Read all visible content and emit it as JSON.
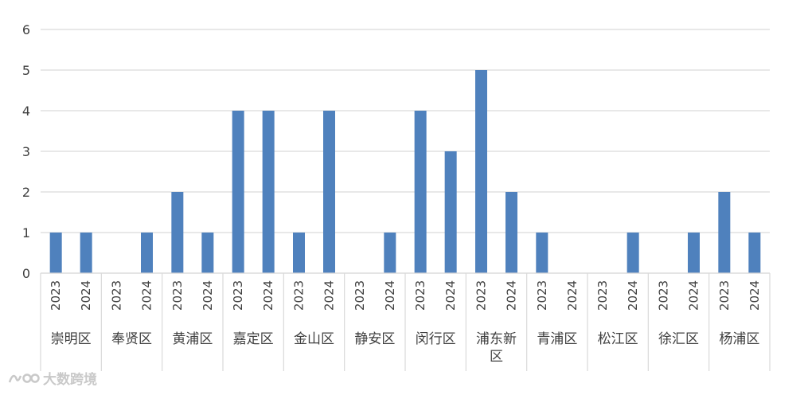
{
  "chart_data": {
    "type": "bar",
    "categories": [
      "崇明区",
      "奉贤区",
      "黄浦区",
      "嘉定区",
      "金山区",
      "静安区",
      "闵行区",
      "浦东新区",
      "青浦区",
      "松江区",
      "徐汇区",
      "杨浦区"
    ],
    "years": [
      "2023",
      "2024"
    ],
    "series": [
      {
        "name": "2023",
        "values": [
          1,
          0,
          2,
          4,
          1,
          0,
          4,
          5,
          1,
          0,
          0,
          2
        ]
      },
      {
        "name": "2024",
        "values": [
          1,
          1,
          1,
          4,
          4,
          1,
          3,
          2,
          0,
          1,
          1,
          1
        ]
      }
    ],
    "ylim": [
      0,
      6
    ],
    "yticks": [
      0,
      1,
      2,
      3,
      4,
      5,
      6
    ],
    "grid": true,
    "bar_color": "#4f81bd",
    "grid_color": "#d9d9d9",
    "title": "",
    "xlabel": "",
    "ylabel": ""
  },
  "watermark": {
    "text": "大数跨境"
  }
}
